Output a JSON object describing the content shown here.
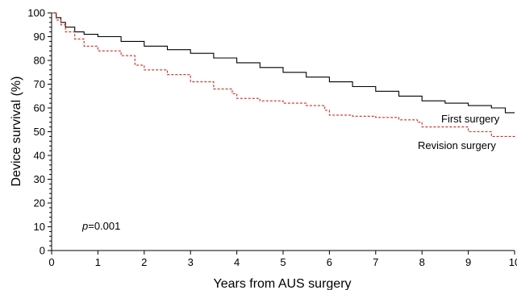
{
  "chart_data": {
    "type": "line",
    "title": "",
    "xlabel": "Years from AUS surgery",
    "ylabel": "Device survival (%)",
    "xlim": [
      0,
      10
    ],
    "ylim": [
      0,
      100
    ],
    "xticks": [
      0,
      1,
      2,
      3,
      4,
      5,
      6,
      7,
      8,
      9,
      10
    ],
    "yticks": [
      0,
      10,
      20,
      30,
      40,
      50,
      60,
      70,
      80,
      90,
      100
    ],
    "grid": false,
    "legend": "none",
    "series": [
      {
        "name": "First surgery",
        "color": "#000000",
        "style": "step-solid",
        "x": [
          0,
          0.1,
          0.2,
          0.3,
          0.5,
          0.7,
          1.0,
          1.5,
          2.0,
          2.5,
          3.0,
          3.5,
          4.0,
          4.5,
          5.0,
          5.5,
          6.0,
          6.5,
          7.0,
          7.5,
          8.0,
          8.5,
          9.0,
          9.5,
          9.8,
          10.0
        ],
        "y": [
          100,
          98,
          96,
          94,
          92,
          91,
          90,
          88,
          86,
          84.5,
          83,
          81,
          79,
          77,
          75,
          73,
          71,
          69,
          67,
          65,
          63,
          62,
          61,
          60,
          58,
          58
        ]
      },
      {
        "name": "Revision surgery",
        "color": "#cc2b1d",
        "style": "step-dashed",
        "x": [
          0,
          0.1,
          0.2,
          0.3,
          0.5,
          0.7,
          1.0,
          1.5,
          1.8,
          2.0,
          2.5,
          3.0,
          3.5,
          3.9,
          4.0,
          4.5,
          5.0,
          5.5,
          5.9,
          6.0,
          6.5,
          7.0,
          7.5,
          7.9,
          8.0,
          8.5,
          9.0,
          9.5,
          10.0
        ],
        "y": [
          100,
          97,
          95,
          92,
          89,
          86,
          84,
          82,
          78,
          76,
          74,
          71,
          68,
          66,
          64,
          63,
          62,
          61,
          59,
          57,
          56.5,
          56,
          55,
          54,
          52,
          52,
          50,
          48,
          47.5
        ]
      }
    ],
    "annotations": [
      {
        "text": "First surgery",
        "x": 8.6,
        "y": 52
      },
      {
        "text": "Revision surgery",
        "x": 8.1,
        "y": 45
      }
    ],
    "p_value": {
      "prefix": "p",
      "suffix": "=0.001"
    }
  }
}
